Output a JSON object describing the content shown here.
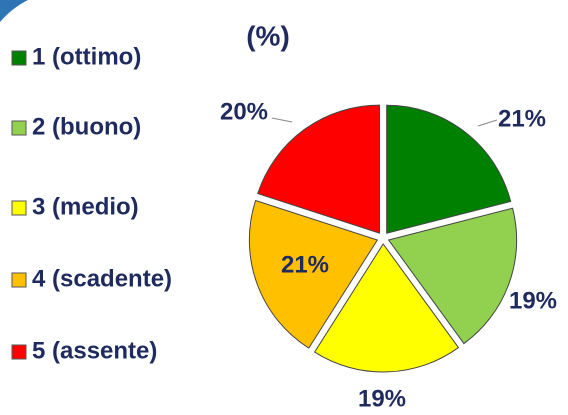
{
  "chart_data": {
    "type": "pie",
    "title": "(%)",
    "categories": [
      "1 (ottimo)",
      "2 (buono)",
      "3 (medio)",
      "4 (scadente)",
      "5 (assente)"
    ],
    "values": [
      21,
      19,
      19,
      21,
      20
    ],
    "value_labels": [
      "21%",
      "19%",
      "19%",
      "21%",
      "20%"
    ],
    "colors": [
      "#008000",
      "#92d050",
      "#ffff00",
      "#ffc000",
      "#ff0000"
    ],
    "legend": "left"
  }
}
